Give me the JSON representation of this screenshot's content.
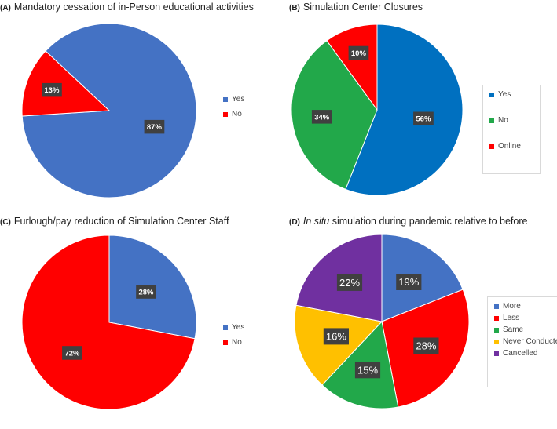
{
  "colors": {
    "blue": "#4472c4",
    "blue_b": "#0070c0",
    "red": "#ff0000",
    "green": "#22a84a",
    "orange": "#ffc000",
    "purple": "#7030a0",
    "label_bg": "#404040"
  },
  "chart_data": [
    {
      "type": "pie",
      "panel_label": "(A)",
      "title": "Mandatory  cessation of in-Person educational activities",
      "categories": [
        "Yes",
        "No"
      ],
      "values": [
        87,
        13
      ],
      "data_labels": [
        "87%",
        "13%"
      ],
      "legend_position": "right"
    },
    {
      "type": "pie",
      "panel_label": "(B)",
      "title": "Simulation Center Closures",
      "categories": [
        "Yes",
        "No",
        "Online"
      ],
      "values": [
        56,
        34,
        10
      ],
      "data_labels": [
        "56%",
        "34%",
        "10%"
      ],
      "legend_position": "right"
    },
    {
      "type": "pie",
      "panel_label": "(C)",
      "title": "Furlough/pay reduction of Simulation Center Staff",
      "categories": [
        "Yes",
        "No"
      ],
      "values": [
        28,
        72
      ],
      "data_labels": [
        "28%",
        "72%"
      ],
      "legend_position": "right"
    },
    {
      "type": "pie",
      "panel_label": "(D)",
      "title_italic": "In situ",
      "title_rest": " simulation during pandemic relative to before",
      "categories": [
        "More",
        "Less",
        "Same",
        "Never Conducted",
        "Cancelled"
      ],
      "values": [
        19,
        28,
        15,
        16,
        22
      ],
      "data_labels": [
        "19%",
        "28%",
        "15%",
        "16%",
        "22%"
      ],
      "legend_position": "right"
    }
  ]
}
